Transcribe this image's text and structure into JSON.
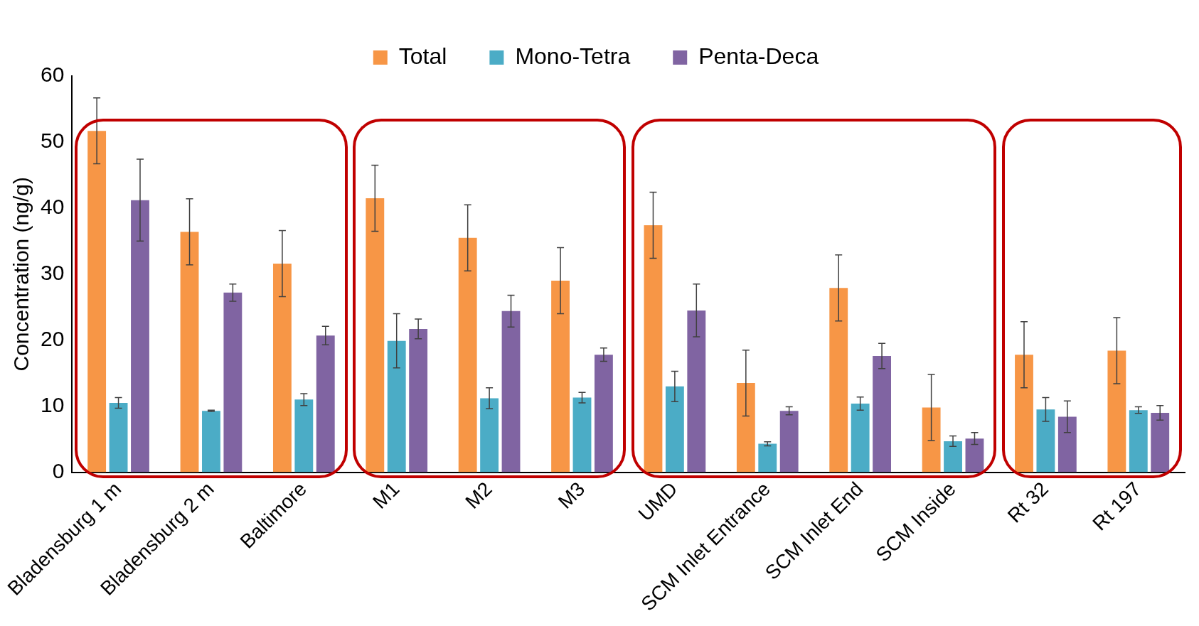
{
  "chart_data": {
    "type": "bar",
    "ylabel": "Concentration (ng/g)",
    "categories": [
      "Bladensburg 1 m",
      "Bladensburg 2 m",
      "Baltimore",
      "M1",
      "M2",
      "M3",
      "UMD",
      "SCM Inlet Entrance",
      "SCM Inlet End",
      "SCM Inside",
      "Rt 32",
      "Rt 197"
    ],
    "series": [
      {
        "name": "Total",
        "color": "#f79646",
        "values": [
          51.7,
          36.4,
          31.6,
          41.5,
          35.5,
          29,
          37.4,
          13.5,
          27.9,
          9.8,
          17.8,
          18.4
        ],
        "errors": [
          5,
          5,
          5,
          5,
          5,
          5,
          5,
          5,
          5,
          5,
          5,
          5
        ]
      },
      {
        "name": "Mono-Tetra",
        "color": "#4bacc6",
        "values": [
          10.5,
          9.3,
          11,
          19.9,
          11.2,
          11.3,
          13,
          4.3,
          10.4,
          4.7,
          9.5,
          9.4
        ],
        "errors": [
          0.8,
          0.1,
          0.9,
          4.1,
          1.6,
          0.8,
          2.3,
          0.3,
          1,
          0.8,
          1.8,
          0.5
        ]
      },
      {
        "name": "Penta-Deca",
        "color": "#8064a2",
        "values": [
          41.2,
          27.2,
          20.7,
          21.7,
          24.4,
          17.8,
          24.5,
          9.3,
          17.6,
          5.1,
          8.4,
          9
        ],
        "errors": [
          6.2,
          1.3,
          1.4,
          1.5,
          2.4,
          1,
          4,
          0.6,
          1.9,
          0.9,
          2.4,
          1.1
        ]
      }
    ],
    "ylim": [
      0,
      60
    ],
    "yticks": [
      0,
      10,
      20,
      30,
      40,
      50,
      60
    ],
    "grid": false,
    "legend": "top"
  }
}
